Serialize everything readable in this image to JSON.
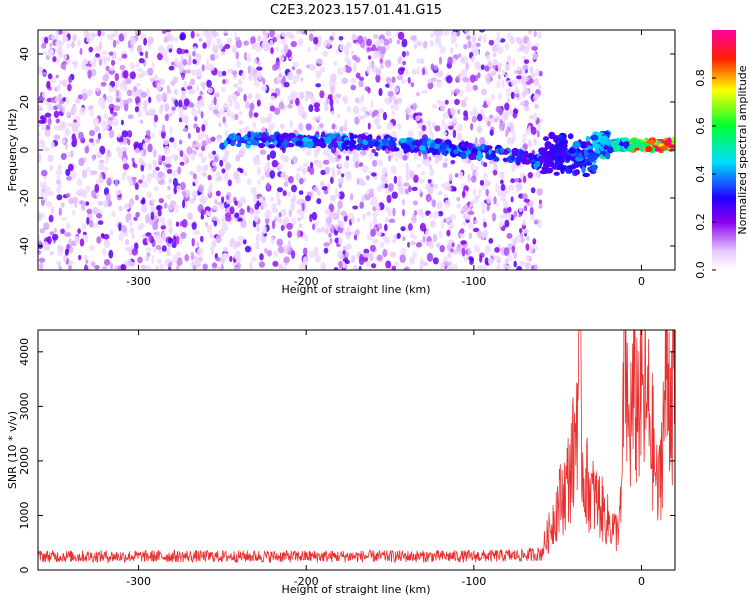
{
  "title": "C2E3.2023.157.01.41.G15",
  "chart_data": [
    {
      "type": "heatmap",
      "xlabel": "Height of straight line (km)",
      "ylabel": "Frequency (Hz)",
      "xlim": [
        -360,
        20
      ],
      "ylim": [
        -50,
        50
      ],
      "xticks": [
        -300,
        -200,
        -100,
        0
      ],
      "yticks": [
        -40,
        -20,
        0,
        20,
        40
      ],
      "grid": false,
      "colorbar": {
        "label": "Normalized spectral amplitude",
        "range": [
          0.0,
          1.0
        ],
        "ticks": [
          0.0,
          0.2,
          0.4,
          0.6,
          0.8
        ],
        "colormap": "rainbow (white to purple to blue to cyan to green to yellow to red to magenta)"
      },
      "features": [
        {
          "description": "diffuse broadband noise",
          "x_range": [
            -360,
            -60
          ],
          "freq_range": [
            -50,
            50
          ],
          "amplitude": 0.1
        },
        {
          "description": "narrow signal track",
          "x_range": [
            -250,
            -60
          ],
          "freq_center": 4,
          "freq_end": -5,
          "amplitude": 0.3
        },
        {
          "description": "strong signal track",
          "x_range": [
            -60,
            20
          ],
          "freq_center": 2,
          "amplitude": 0.95
        }
      ]
    },
    {
      "type": "line",
      "xlabel": "Height of straight line (km)",
      "ylabel": "SNR (10 * v/v)",
      "xlim": [
        -360,
        20
      ],
      "ylim": [
        0,
        4400
      ],
      "xticks": [
        -300,
        -200,
        -100,
        0
      ],
      "yticks": [
        0,
        1000,
        2000,
        3000,
        4000
      ],
      "grid": false,
      "color": "#e83030",
      "series": [
        {
          "x": [
            -360,
            -300,
            -250,
            -200,
            -150,
            -100,
            -70,
            -60,
            -55,
            -50,
            -45,
            -40,
            -37,
            -35,
            -30,
            -25,
            -20,
            -15,
            -12,
            -10,
            -8,
            -5,
            0,
            5,
            10,
            15,
            18,
            20
          ],
          "y": [
            250,
            250,
            250,
            250,
            250,
            250,
            270,
            300,
            700,
            1200,
            1500,
            2200,
            3900,
            1800,
            1400,
            1200,
            900,
            700,
            1100,
            4400,
            2500,
            3000,
            3200,
            2800,
            1300,
            3600,
            3400,
            3300
          ]
        }
      ]
    }
  ]
}
